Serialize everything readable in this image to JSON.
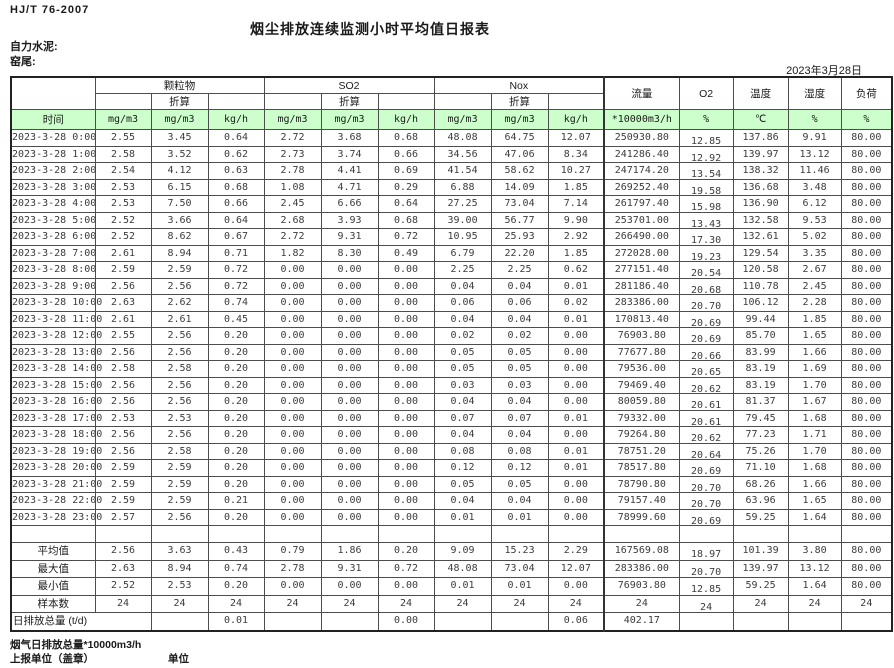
{
  "header": {
    "standard": "HJ/T  76-2007",
    "title": "烟尘排放连续监测小时平均值日报表",
    "company": "自力水泥:",
    "site": "窑尾:",
    "date": "2023年3月28日"
  },
  "colors": {
    "header_green": "#ccffcc",
    "grid_line": "#4d4d4d"
  },
  "table": {
    "groups": [
      "颗粒物",
      "SO2",
      "Nox",
      "流量",
      "O2",
      "温度",
      "湿度",
      "负荷"
    ],
    "converted_label": "折算",
    "time_label": "时间",
    "units": [
      "mg/m3",
      "mg/m3",
      "kg/h",
      "mg/m3",
      "mg/m3",
      "kg/h",
      "mg/m3",
      "mg/m3",
      "kg/h",
      "*10000m3/h",
      "%",
      "℃",
      "%",
      "%"
    ],
    "rows": [
      {
        "time": "2023-3-28 0:00",
        "values": [
          "2.55",
          "3.45",
          "0.64",
          "2.72",
          "3.68",
          "0.68",
          "48.08",
          "64.75",
          "12.07",
          "250930.80",
          "12.85",
          "137.86",
          "9.91",
          "80.00"
        ]
      },
      {
        "time": "2023-3-28 1:00",
        "values": [
          "2.58",
          "3.52",
          "0.62",
          "2.73",
          "3.74",
          "0.66",
          "34.56",
          "47.06",
          "8.34",
          "241286.40",
          "12.92",
          "139.97",
          "13.12",
          "80.00"
        ]
      },
      {
        "time": "2023-3-28 2:00",
        "values": [
          "2.54",
          "4.12",
          "0.63",
          "2.78",
          "4.41",
          "0.69",
          "41.54",
          "58.62",
          "10.27",
          "247174.20",
          "13.54",
          "138.32",
          "11.46",
          "80.00"
        ]
      },
      {
        "time": "2023-3-28 3:00",
        "values": [
          "2.53",
          "6.15",
          "0.68",
          "1.08",
          "4.71",
          "0.29",
          "6.88",
          "14.09",
          "1.85",
          "269252.40",
          "19.58",
          "136.68",
          "3.48",
          "80.00"
        ]
      },
      {
        "time": "2023-3-28 4:00",
        "values": [
          "2.53",
          "7.50",
          "0.66",
          "2.45",
          "6.66",
          "0.64",
          "27.25",
          "73.04",
          "7.14",
          "261797.40",
          "15.98",
          "136.90",
          "6.12",
          "80.00"
        ]
      },
      {
        "time": "2023-3-28 5:00",
        "values": [
          "2.52",
          "3.66",
          "0.64",
          "2.68",
          "3.93",
          "0.68",
          "39.00",
          "56.77",
          "9.90",
          "253701.00",
          "13.43",
          "132.58",
          "9.53",
          "80.00"
        ]
      },
      {
        "time": "2023-3-28 6:00",
        "values": [
          "2.52",
          "8.62",
          "0.67",
          "2.72",
          "9.31",
          "0.72",
          "10.95",
          "25.93",
          "2.92",
          "266490.00",
          "17.30",
          "132.61",
          "5.02",
          "80.00"
        ]
      },
      {
        "time": "2023-3-28 7:00",
        "values": [
          "2.61",
          "8.94",
          "0.71",
          "1.82",
          "8.30",
          "0.49",
          "6.79",
          "22.20",
          "1.85",
          "272028.00",
          "19.23",
          "129.54",
          "3.35",
          "80.00"
        ]
      },
      {
        "time": "2023-3-28 8:00",
        "values": [
          "2.59",
          "2.59",
          "0.72",
          "0.00",
          "0.00",
          "0.00",
          "2.25",
          "2.25",
          "0.62",
          "277151.40",
          "20.54",
          "120.58",
          "2.67",
          "80.00"
        ]
      },
      {
        "time": "2023-3-28 9:00",
        "values": [
          "2.56",
          "2.56",
          "0.72",
          "0.00",
          "0.00",
          "0.00",
          "0.04",
          "0.04",
          "0.01",
          "281186.40",
          "20.68",
          "110.78",
          "2.45",
          "80.00"
        ]
      },
      {
        "time": "2023-3-28 10:00",
        "values": [
          "2.63",
          "2.62",
          "0.74",
          "0.00",
          "0.00",
          "0.00",
          "0.06",
          "0.06",
          "0.02",
          "283386.00",
          "20.70",
          "106.12",
          "2.28",
          "80.00"
        ]
      },
      {
        "time": "2023-3-28 11:00",
        "values": [
          "2.61",
          "2.61",
          "0.45",
          "0.00",
          "0.00",
          "0.00",
          "0.04",
          "0.04",
          "0.01",
          "170813.40",
          "20.69",
          "99.44",
          "1.85",
          "80.00"
        ]
      },
      {
        "time": "2023-3-28 12:00",
        "values": [
          "2.55",
          "2.56",
          "0.20",
          "0.00",
          "0.00",
          "0.00",
          "0.02",
          "0.02",
          "0.00",
          "76903.80",
          "20.69",
          "85.70",
          "1.65",
          "80.00"
        ]
      },
      {
        "time": "2023-3-28 13:00",
        "values": [
          "2.56",
          "2.56",
          "0.20",
          "0.00",
          "0.00",
          "0.00",
          "0.05",
          "0.05",
          "0.00",
          "77677.80",
          "20.66",
          "83.99",
          "1.66",
          "80.00"
        ]
      },
      {
        "time": "2023-3-28 14:00",
        "values": [
          "2.58",
          "2.58",
          "0.20",
          "0.00",
          "0.00",
          "0.00",
          "0.05",
          "0.05",
          "0.00",
          "79536.00",
          "20.65",
          "83.19",
          "1.69",
          "80.00"
        ]
      },
      {
        "time": "2023-3-28 15:00",
        "values": [
          "2.56",
          "2.56",
          "0.20",
          "0.00",
          "0.00",
          "0.00",
          "0.03",
          "0.03",
          "0.00",
          "79469.40",
          "20.62",
          "83.19",
          "1.70",
          "80.00"
        ]
      },
      {
        "time": "2023-3-28 16:00",
        "values": [
          "2.56",
          "2.56",
          "0.20",
          "0.00",
          "0.00",
          "0.00",
          "0.04",
          "0.04",
          "0.00",
          "80059.80",
          "20.61",
          "81.37",
          "1.67",
          "80.00"
        ]
      },
      {
        "time": "2023-3-28 17:00",
        "values": [
          "2.53",
          "2.53",
          "0.20",
          "0.00",
          "0.00",
          "0.00",
          "0.07",
          "0.07",
          "0.01",
          "79332.00",
          "20.61",
          "79.45",
          "1.68",
          "80.00"
        ]
      },
      {
        "time": "2023-3-28 18:00",
        "values": [
          "2.56",
          "2.56",
          "0.20",
          "0.00",
          "0.00",
          "0.00",
          "0.04",
          "0.04",
          "0.00",
          "79264.80",
          "20.62",
          "77.23",
          "1.71",
          "80.00"
        ]
      },
      {
        "time": "2023-3-28 19:00",
        "values": [
          "2.56",
          "2.58",
          "0.20",
          "0.00",
          "0.00",
          "0.00",
          "0.08",
          "0.08",
          "0.01",
          "78751.20",
          "20.64",
          "75.26",
          "1.70",
          "80.00"
        ]
      },
      {
        "time": "2023-3-28 20:00",
        "values": [
          "2.59",
          "2.59",
          "0.20",
          "0.00",
          "0.00",
          "0.00",
          "0.12",
          "0.12",
          "0.01",
          "78517.80",
          "20.69",
          "71.10",
          "1.68",
          "80.00"
        ]
      },
      {
        "time": "2023-3-28 21:00",
        "values": [
          "2.59",
          "2.59",
          "0.20",
          "0.00",
          "0.00",
          "0.00",
          "0.05",
          "0.05",
          "0.00",
          "78790.80",
          "20.70",
          "68.26",
          "1.66",
          "80.00"
        ]
      },
      {
        "time": "2023-3-28 22:00",
        "values": [
          "2.59",
          "2.59",
          "0.21",
          "0.00",
          "0.00",
          "0.00",
          "0.04",
          "0.04",
          "0.00",
          "79157.40",
          "20.70",
          "63.96",
          "1.65",
          "80.00"
        ]
      },
      {
        "time": "2023-3-28 23:00",
        "values": [
          "2.57",
          "2.56",
          "0.20",
          "0.00",
          "0.00",
          "0.00",
          "0.01",
          "0.01",
          "0.00",
          "78999.60",
          "20.69",
          "59.25",
          "1.64",
          "80.00"
        ]
      }
    ],
    "summary": [
      {
        "label": "平均值",
        "values": [
          "2.56",
          "3.63",
          "0.43",
          "0.79",
          "1.86",
          "0.20",
          "9.09",
          "15.23",
          "2.29",
          "167569.08",
          "18.97",
          "101.39",
          "3.80",
          "80.00"
        ]
      },
      {
        "label": "最大值",
        "values": [
          "2.63",
          "8.94",
          "0.74",
          "2.78",
          "9.31",
          "0.72",
          "48.08",
          "73.04",
          "12.07",
          "283386.00",
          "20.70",
          "139.97",
          "13.12",
          "80.00"
        ]
      },
      {
        "label": "最小值",
        "values": [
          "2.52",
          "2.53",
          "0.20",
          "0.00",
          "0.00",
          "0.00",
          "0.01",
          "0.01",
          "0.00",
          "76903.80",
          "12.85",
          "59.25",
          "1.64",
          "80.00"
        ]
      },
      {
        "label": "样本数",
        "values": [
          "24",
          "24",
          "24",
          "24",
          "24",
          "24",
          "24",
          "24",
          "24",
          "24",
          "24",
          "24",
          "24",
          "24"
        ]
      }
    ],
    "total_row": {
      "label": "日排放总量 (t/d)",
      "values": [
        "",
        "0.01",
        "",
        "",
        "0.00",
        "",
        "",
        "0.06",
        "402.17",
        "",
        "",
        "",
        ""
      ]
    }
  },
  "footer": {
    "flow_note": "烟气日排放总量*10000m3/h",
    "report_unit": "上报单位（盖章）",
    "unit": "单位"
  }
}
